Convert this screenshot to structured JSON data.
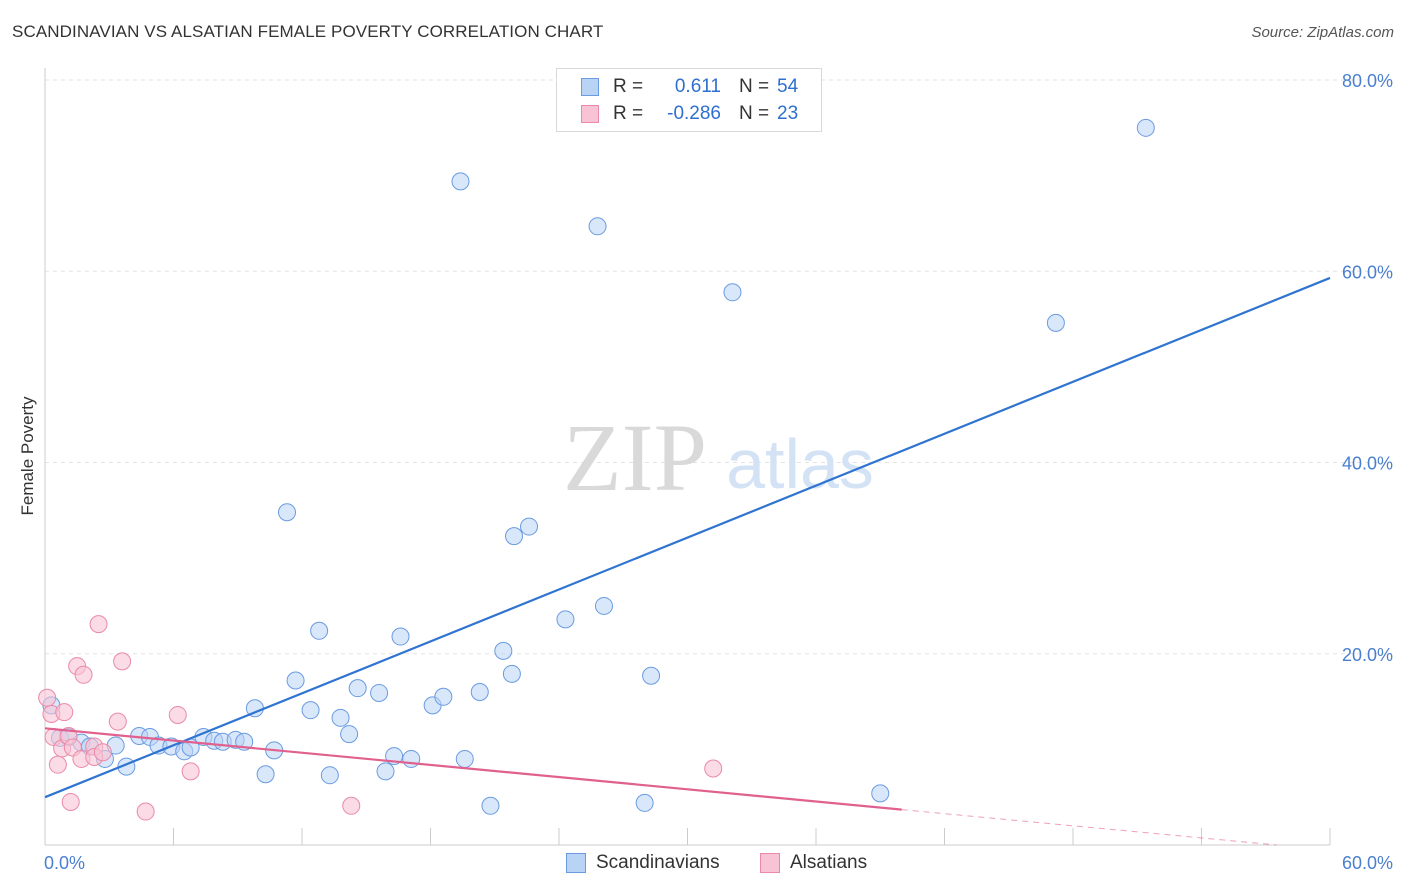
{
  "header": {
    "title": "SCANDINAVIAN VS ALSATIAN FEMALE POVERTY CORRELATION CHART",
    "source": "Source: ZipAtlas.com"
  },
  "watermark": {
    "zip": "ZIP",
    "atlas": "atlas"
  },
  "legend": {
    "rows": [
      {
        "r_label": "R =",
        "r_value": "0.611",
        "n_label": "N =",
        "n_value": "54"
      },
      {
        "r_label": "R =",
        "r_value": "-0.286",
        "n_label": "N =",
        "n_value": "23"
      }
    ]
  },
  "bottom_legend": {
    "scandinavians": "Scandinavians",
    "alsatians": "Alsatians"
  },
  "colors": {
    "blue_fill": "#b9d3f5",
    "blue_stroke": "#6a9be0",
    "blue_line": "#2f74d0",
    "pink_fill": "#f8c3d4",
    "pink_stroke": "#ea8aa8",
    "pink_line": "#e0608e",
    "axis_text": "#4a7fd0",
    "grid": "#e3e3e3"
  },
  "chart_data": {
    "type": "scatter",
    "title": "SCANDINAVIAN VS ALSATIAN FEMALE POVERTY CORRELATION CHART",
    "xlabel": "",
    "ylabel": "Female Poverty",
    "xlim": [
      0,
      60
    ],
    "ylim": [
      0,
      80
    ],
    "x_tick_labels": [
      {
        "value": 0,
        "label": "0.0%"
      },
      {
        "value": 60,
        "label": "60.0%"
      }
    ],
    "y_tick_labels": [
      {
        "value": 20,
        "label": "20.0%"
      },
      {
        "value": 40,
        "label": "40.0%"
      },
      {
        "value": 60,
        "label": "60.0%"
      },
      {
        "value": 80,
        "label": "80.0%"
      }
    ],
    "series": [
      {
        "name": "Scandinavians",
        "r": 0.611,
        "n": 54,
        "trend": {
          "x0": 0,
          "y0": 5.0,
          "x1": 60,
          "y1": 59.3
        },
        "points": [
          [
            0.3,
            14.6
          ],
          [
            0.7,
            11.2
          ],
          [
            1.1,
            11.3
          ],
          [
            1.7,
            10.7
          ],
          [
            2.1,
            10.3
          ],
          [
            2.8,
            9.0
          ],
          [
            3.3,
            10.4
          ],
          [
            3.8,
            8.2
          ],
          [
            4.4,
            11.4
          ],
          [
            4.9,
            11.3
          ],
          [
            5.3,
            10.4
          ],
          [
            5.9,
            10.3
          ],
          [
            6.5,
            9.8
          ],
          [
            6.8,
            10.2
          ],
          [
            7.4,
            11.3
          ],
          [
            7.9,
            10.9
          ],
          [
            8.3,
            10.8
          ],
          [
            8.9,
            11.0
          ],
          [
            9.3,
            10.8
          ],
          [
            9.8,
            14.3
          ],
          [
            10.3,
            7.4
          ],
          [
            10.7,
            9.9
          ],
          [
            11.3,
            34.8
          ],
          [
            11.7,
            17.2
          ],
          [
            12.4,
            14.1
          ],
          [
            12.8,
            22.4
          ],
          [
            13.3,
            7.3
          ],
          [
            13.8,
            13.3
          ],
          [
            14.2,
            11.6
          ],
          [
            14.6,
            16.4
          ],
          [
            15.6,
            15.9
          ],
          [
            15.9,
            7.7
          ],
          [
            16.3,
            9.3
          ],
          [
            16.6,
            21.8
          ],
          [
            17.1,
            9.0
          ],
          [
            18.1,
            14.6
          ],
          [
            18.6,
            15.5
          ],
          [
            19.4,
            69.4
          ],
          [
            19.6,
            9.0
          ],
          [
            20.3,
            16.0
          ],
          [
            20.8,
            4.1
          ],
          [
            21.4,
            20.3
          ],
          [
            21.8,
            17.9
          ],
          [
            21.9,
            32.3
          ],
          [
            22.6,
            33.3
          ],
          [
            24.3,
            23.6
          ],
          [
            25.8,
            64.7
          ],
          [
            26.1,
            25.0
          ],
          [
            28.0,
            4.4
          ],
          [
            28.3,
            17.7
          ],
          [
            32.1,
            57.8
          ],
          [
            39.0,
            5.4
          ],
          [
            47.2,
            54.6
          ],
          [
            51.4,
            75.0
          ]
        ]
      },
      {
        "name": "Alsatians",
        "r": -0.286,
        "n": 23,
        "trend": {
          "x0": 0,
          "y0": 12.2,
          "x1": 40,
          "y1": 3.7
        },
        "trend_dashed": {
          "x0": 40,
          "y0": 3.7,
          "x1": 57.5,
          "y1": 0
        },
        "points": [
          [
            0.1,
            15.4
          ],
          [
            0.3,
            13.7
          ],
          [
            0.4,
            11.3
          ],
          [
            0.6,
            8.4
          ],
          [
            0.8,
            10.1
          ],
          [
            0.9,
            13.9
          ],
          [
            1.1,
            11.4
          ],
          [
            1.2,
            4.5
          ],
          [
            1.3,
            10.2
          ],
          [
            1.5,
            18.7
          ],
          [
            1.7,
            9.0
          ],
          [
            1.8,
            17.8
          ],
          [
            2.3,
            10.3
          ],
          [
            2.3,
            9.2
          ],
          [
            2.5,
            23.1
          ],
          [
            2.7,
            9.7
          ],
          [
            3.4,
            12.9
          ],
          [
            3.6,
            19.2
          ],
          [
            4.7,
            3.5
          ],
          [
            6.2,
            13.6
          ],
          [
            6.8,
            7.7
          ],
          [
            14.3,
            4.1
          ],
          [
            31.2,
            8.0
          ]
        ]
      }
    ]
  }
}
